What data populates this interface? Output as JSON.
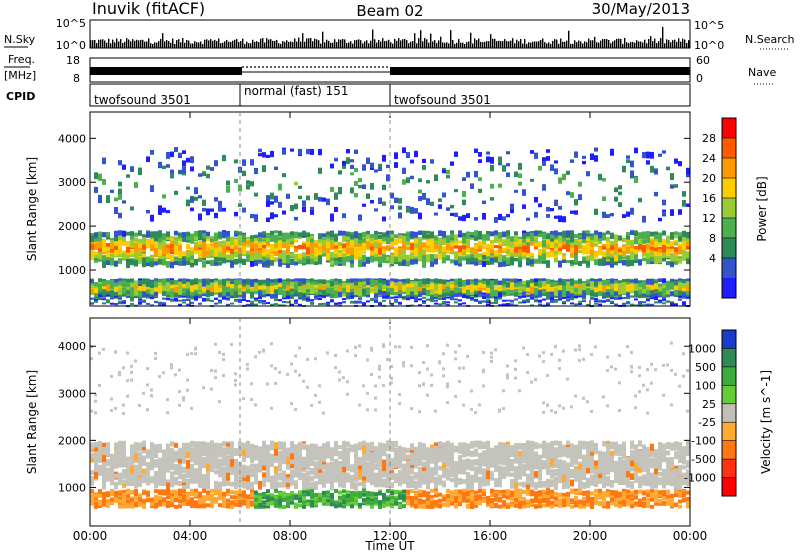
{
  "header": {
    "site": "Inuvik (fitACF)",
    "beam": "Beam 02",
    "date": "30/May/2013"
  },
  "top_panels": {
    "nsky_label": "N.Sky",
    "nsky_ticks": [
      "10^5",
      "10^0"
    ],
    "nsearch_label": "N.Search",
    "nsearch_ticks": [
      "10^5",
      "10^0"
    ],
    "freq_label": "Freq.",
    "freq_unit": "[MHz]",
    "freq_ticks": [
      "18",
      "8"
    ],
    "nave_label": "Nave",
    "nave_ticks": [
      "60",
      "0"
    ],
    "cpid_label": "CPID",
    "cpid_segments": [
      {
        "label": "twofsound 3501",
        "start_h": 0,
        "end_h": 6
      },
      {
        "label": "normal (fast) 151",
        "start_h": 6,
        "end_h": 12
      },
      {
        "label": "twofsound 3501",
        "start_h": 12,
        "end_h": 24
      }
    ]
  },
  "chart_data": [
    {
      "type": "heatmap",
      "panel": "power",
      "xlabel": "",
      "ylabel": "Slant Range [km]",
      "x_range_hours": [
        0,
        24
      ],
      "ylim": [
        180,
        4600
      ],
      "yticks": [
        1000,
        2000,
        3000,
        4000
      ],
      "colorbar_label": "Power [dB]",
      "colorbar_ticks": [
        "28",
        "24",
        "20",
        "16",
        "12",
        "8",
        "4"
      ],
      "colorbar_colors": [
        "#ff0000",
        "#ff5a00",
        "#ff9900",
        "#ffcc00",
        "#99cc33",
        "#4caf50",
        "#2e8b57",
        "#3355cc",
        "#1d1dff"
      ],
      "echo_bands": [
        {
          "name": "main_band",
          "center_km": 1550,
          "width_km": 550,
          "level_db": 24
        },
        {
          "name": "lower_band",
          "center_km": 650,
          "width_km": 250,
          "level_db": 20
        },
        {
          "name": "upper_scatter",
          "center_km": 3000,
          "width_km": 900,
          "level_db": 10
        }
      ]
    },
    {
      "type": "heatmap",
      "panel": "velocity",
      "xlabel": "Time UT",
      "ylabel": "Slant Range [km]",
      "x_range_hours": [
        0,
        24
      ],
      "ylim": [
        180,
        4600
      ],
      "yticks": [
        1000,
        2000,
        3000,
        4000
      ],
      "xticks": [
        "00:00",
        "04:00",
        "08:00",
        "12:00",
        "16:00",
        "20:00",
        "00:00"
      ],
      "colorbar_label": "Velocity [m s^-1]",
      "colorbar_ticks": [
        "1000",
        "500",
        "100",
        "25",
        "-25",
        "-100",
        "-500",
        "-1000"
      ],
      "colorbar_colors": [
        "#1a3cc8",
        "#2e8b57",
        "#3daa3d",
        "#66cc33",
        "#c0c0b8",
        "#ffaa33",
        "#ff7711",
        "#ff3311",
        "#ff0000"
      ],
      "echo_bands": [
        {
          "name": "ground_scatter",
          "center_km": 1550,
          "width_km": 700,
          "velocity": 0
        },
        {
          "name": "lower_band",
          "center_km": 750,
          "width_km": 300,
          "velocity": -300
        }
      ]
    }
  ],
  "colors": {
    "axis": "#000000",
    "ground": "#c0c0b8"
  }
}
